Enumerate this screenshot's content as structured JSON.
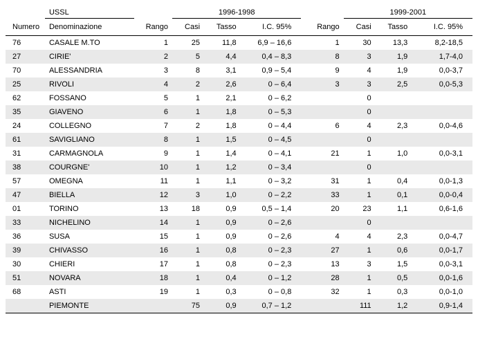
{
  "headers": {
    "group_ussl": "USSL",
    "group_p1": "1996-1998",
    "group_p2": "1999-2001",
    "numero": "Numero",
    "denominazione": "Denominazione",
    "rango": "Rango",
    "casi": "Casi",
    "tasso": "Tasso",
    "ic": "I.C. 95%"
  },
  "style": {
    "font_family": "Verdana",
    "font_size_pt": 8,
    "row_alt_bg": "#e9e9e9",
    "row_bg": "#ffffff",
    "border_color": "#000000",
    "text_color": "#000000"
  },
  "rows": [
    {
      "numero": "76",
      "den": "CASALE M.TO",
      "p1": {
        "rango": "1",
        "casi": "25",
        "tasso": "11,8",
        "ic": "6,9 – 16,6"
      },
      "p2": {
        "rango": "1",
        "casi": "30",
        "tasso": "13,3",
        "ic": "8,2-18,5"
      }
    },
    {
      "numero": "27",
      "den": "CIRIE'",
      "p1": {
        "rango": "2",
        "casi": "5",
        "tasso": "4,4",
        "ic": "0,4 – 8,3"
      },
      "p2": {
        "rango": "8",
        "casi": "3",
        "tasso": "1,9",
        "ic": "1,7-4,0"
      }
    },
    {
      "numero": "70",
      "den": "ALESSANDRIA",
      "p1": {
        "rango": "3",
        "casi": "8",
        "tasso": "3,1",
        "ic": "0,9 – 5,4"
      },
      "p2": {
        "rango": "9",
        "casi": "4",
        "tasso": "1,9",
        "ic": "0,0-3,7"
      }
    },
    {
      "numero": "25",
      "den": "RIVOLI",
      "p1": {
        "rango": "4",
        "casi": "2",
        "tasso": "2,6",
        "ic": "0 – 6,4"
      },
      "p2": {
        "rango": "3",
        "casi": "3",
        "tasso": "2,5",
        "ic": "0,0-5,3"
      }
    },
    {
      "numero": "62",
      "den": "FOSSANO",
      "p1": {
        "rango": "5",
        "casi": "1",
        "tasso": "2,1",
        "ic": "0 – 6,2"
      },
      "p2": {
        "rango": "",
        "casi": "0",
        "tasso": "",
        "ic": ""
      }
    },
    {
      "numero": "35",
      "den": "GIAVENO",
      "p1": {
        "rango": "6",
        "casi": "1",
        "tasso": "1,8",
        "ic": "0 – 5,3"
      },
      "p2": {
        "rango": "",
        "casi": "0",
        "tasso": "",
        "ic": ""
      }
    },
    {
      "numero": "24",
      "den": "COLLEGNO",
      "p1": {
        "rango": "7",
        "casi": "2",
        "tasso": "1,8",
        "ic": "0 – 4,4"
      },
      "p2": {
        "rango": "6",
        "casi": "4",
        "tasso": "2,3",
        "ic": "0,0-4,6"
      }
    },
    {
      "numero": "61",
      "den": "SAVIGLIANO",
      "p1": {
        "rango": "8",
        "casi": "1",
        "tasso": "1,5",
        "ic": "0 – 4,5"
      },
      "p2": {
        "rango": "",
        "casi": "0",
        "tasso": "",
        "ic": ""
      }
    },
    {
      "numero": "31",
      "den": "CARMAGNOLA",
      "p1": {
        "rango": "9",
        "casi": "1",
        "tasso": "1,4",
        "ic": "0 – 4,1"
      },
      "p2": {
        "rango": "21",
        "casi": "1",
        "tasso": "1,0",
        "ic": "0,0-3,1"
      }
    },
    {
      "numero": "38",
      "den": "COURGNE'",
      "p1": {
        "rango": "10",
        "casi": "1",
        "tasso": "1,2",
        "ic": "0 – 3,4"
      },
      "p2": {
        "rango": "",
        "casi": "0",
        "tasso": "",
        "ic": ""
      }
    },
    {
      "numero": "57",
      "den": "OMEGNA",
      "p1": {
        "rango": "11",
        "casi": "1",
        "tasso": "1,1",
        "ic": "0 – 3,2"
      },
      "p2": {
        "rango": "31",
        "casi": "1",
        "tasso": "0,4",
        "ic": "0,0-1,3"
      }
    },
    {
      "numero": "47",
      "den": "BIELLA",
      "p1": {
        "rango": "12",
        "casi": "3",
        "tasso": "1,0",
        "ic": "0 – 2,2"
      },
      "p2": {
        "rango": "33",
        "casi": "1",
        "tasso": "0,1",
        "ic": "0,0-0,4"
      }
    },
    {
      "numero": "01",
      "den": "TORINO",
      "p1": {
        "rango": "13",
        "casi": "18",
        "tasso": "0,9",
        "ic": "0,5 – 1,4"
      },
      "p2": {
        "rango": "20",
        "casi": "23",
        "tasso": "1,1",
        "ic": "0,6-1,6"
      }
    },
    {
      "numero": "33",
      "den": "NICHELINO",
      "p1": {
        "rango": "14",
        "casi": "1",
        "tasso": "0,9",
        "ic": "0 – 2,6"
      },
      "p2": {
        "rango": "",
        "casi": "0",
        "tasso": "",
        "ic": ""
      }
    },
    {
      "numero": "36",
      "den": "SUSA",
      "p1": {
        "rango": "15",
        "casi": "1",
        "tasso": "0,9",
        "ic": "0 – 2,6"
      },
      "p2": {
        "rango": "4",
        "casi": "4",
        "tasso": "2,3",
        "ic": "0,0-4,7"
      }
    },
    {
      "numero": "39",
      "den": "CHIVASSO",
      "p1": {
        "rango": "16",
        "casi": "1",
        "tasso": "0,8",
        "ic": "0 – 2,3"
      },
      "p2": {
        "rango": "27",
        "casi": "1",
        "tasso": "0,6",
        "ic": "0,0-1,7"
      }
    },
    {
      "numero": "30",
      "den": "CHIERI",
      "p1": {
        "rango": "17",
        "casi": "1",
        "tasso": "0,8",
        "ic": "0 – 2,3"
      },
      "p2": {
        "rango": "13",
        "casi": "3",
        "tasso": "1,5",
        "ic": "0,0-3,1"
      }
    },
    {
      "numero": "51",
      "den": "NOVARA",
      "p1": {
        "rango": "18",
        "casi": "1",
        "tasso": "0,4",
        "ic": "0 – 1,2"
      },
      "p2": {
        "rango": "28",
        "casi": "1",
        "tasso": "0,5",
        "ic": "0,0-1,6"
      }
    },
    {
      "numero": "68",
      "den": "ASTI",
      "p1": {
        "rango": "19",
        "casi": "1",
        "tasso": "0,3",
        "ic": "0 – 0,8"
      },
      "p2": {
        "rango": "32",
        "casi": "1",
        "tasso": "0,3",
        "ic": "0,0-1,0"
      }
    },
    {
      "numero": "",
      "den": "PIEMONTE",
      "p1": {
        "rango": "",
        "casi": "75",
        "tasso": "0,9",
        "ic": "0,7 – 1,2"
      },
      "p2": {
        "rango": "",
        "casi": "111",
        "tasso": "1,2",
        "ic": "0,9-1,4"
      }
    }
  ]
}
